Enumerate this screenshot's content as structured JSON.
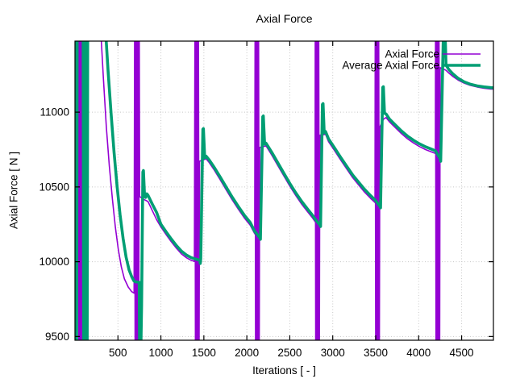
{
  "figure": {
    "title": "Axial Force",
    "x_label": "Iterations [ - ]",
    "y_label": "Axial Force [ N ]"
  },
  "chart_data": {
    "type": "line",
    "title": "Axial Force",
    "xlabel": "Iterations [ - ]",
    "ylabel": "Axial Force [ N ]",
    "xlim": [
      0,
      4870
    ],
    "ylim": [
      9475,
      11475
    ],
    "xticks": [
      500,
      1000,
      1500,
      2000,
      2500,
      3000,
      3500,
      4000,
      4500
    ],
    "yticks": [
      9500,
      10000,
      10500,
      11000
    ],
    "grid": "dotted",
    "grid_color": "#c8c8c8",
    "frame_color": "#000000",
    "legend_position": "top-right-inside",
    "legend": [
      "Axial Force",
      "Average Axial Force"
    ],
    "series": [
      {
        "name": "Axial Force",
        "color": "#9400D3",
        "line_width": 1.6,
        "segments": [
          [
            [
              40,
              11600
            ],
            [
              45,
              9350
            ],
            [
              52,
              11600
            ],
            [
              59,
              9350
            ],
            [
              66,
              11600
            ],
            [
              73,
              9350
            ],
            [
              80,
              11600
            ],
            [
              84,
              9350
            ]
          ],
          [
            [
              295,
              11600
            ],
            [
              330,
              11230
            ],
            [
              365,
              10900
            ],
            [
              400,
              10640
            ],
            [
              435,
              10420
            ],
            [
              470,
              10230
            ],
            [
              505,
              10080
            ],
            [
              540,
              9965
            ],
            [
              575,
              9885
            ],
            [
              620,
              9830
            ],
            [
              660,
              9800
            ],
            [
              688,
              9790
            ],
            [
              694,
              11600
            ],
            [
              700,
              9350
            ],
            [
              707,
              11600
            ],
            [
              714,
              9350
            ],
            [
              721,
              11600
            ],
            [
              728,
              9350
            ],
            [
              735,
              11600
            ],
            [
              742,
              9350
            ],
            [
              748,
              11600
            ],
            [
              753,
              10437
            ],
            [
              790,
              10420
            ],
            [
              850,
              10402
            ],
            [
              900,
              10342
            ],
            [
              950,
              10282
            ],
            [
              1000,
              10232
            ],
            [
              1060,
              10182
            ],
            [
              1120,
              10134
            ],
            [
              1180,
              10090
            ],
            [
              1240,
              10052
            ],
            [
              1300,
              10026
            ],
            [
              1350,
              10010
            ],
            [
              1390,
              10002
            ],
            [
              1396,
              11600
            ],
            [
              1402,
              9350
            ],
            [
              1409,
              11600
            ],
            [
              1416,
              9350
            ],
            [
              1423,
              11600
            ],
            [
              1430,
              9350
            ],
            [
              1437,
              11600
            ],
            [
              1444,
              9350
            ],
            [
              1450,
              10672
            ],
            [
              1526,
              10688
            ],
            [
              1560,
              10664
            ],
            [
              1620,
              10614
            ],
            [
              1690,
              10548
            ],
            [
              1760,
              10480
            ],
            [
              1830,
              10414
            ],
            [
              1900,
              10352
            ],
            [
              1970,
              10294
            ],
            [
              2040,
              10244
            ],
            [
              2092,
              10187
            ],
            [
              2096,
              11600
            ],
            [
              2102,
              9350
            ],
            [
              2109,
              11600
            ],
            [
              2116,
              9350
            ],
            [
              2123,
              11600
            ],
            [
              2130,
              9350
            ],
            [
              2137,
              11600
            ],
            [
              2144,
              9350
            ],
            [
              2150,
              10764
            ],
            [
              2224,
              10774
            ],
            [
              2290,
              10714
            ],
            [
              2360,
              10644
            ],
            [
              2430,
              10574
            ],
            [
              2500,
              10506
            ],
            [
              2570,
              10442
            ],
            [
              2640,
              10384
            ],
            [
              2710,
              10332
            ],
            [
              2765,
              10292
            ],
            [
              2794,
              10268
            ],
            [
              2796,
              11600
            ],
            [
              2802,
              9350
            ],
            [
              2809,
              11600
            ],
            [
              2816,
              9350
            ],
            [
              2823,
              11600
            ],
            [
              2830,
              9350
            ],
            [
              2837,
              11600
            ],
            [
              2844,
              9350
            ],
            [
              2850,
              10846
            ],
            [
              2916,
              10852
            ],
            [
              2950,
              10804
            ],
            [
              3020,
              10744
            ],
            [
              3090,
              10682
            ],
            [
              3160,
              10622
            ],
            [
              3230,
              10564
            ],
            [
              3300,
              10514
            ],
            [
              3370,
              10466
            ],
            [
              3440,
              10424
            ],
            [
              3492,
              10396
            ],
            [
              3494,
              11600
            ],
            [
              3500,
              9350
            ],
            [
              3507,
              11600
            ],
            [
              3514,
              9350
            ],
            [
              3521,
              11600
            ],
            [
              3528,
              9350
            ],
            [
              3535,
              11600
            ],
            [
              3542,
              9350
            ],
            [
              3548,
              10900
            ],
            [
              3589,
              10952
            ],
            [
              3620,
              10964
            ],
            [
              3660,
              10936
            ],
            [
              3730,
              10896
            ],
            [
              3800,
              10856
            ],
            [
              3870,
              10822
            ],
            [
              3940,
              10794
            ],
            [
              4010,
              10770
            ],
            [
              4080,
              10750
            ],
            [
              4150,
              10734
            ],
            [
              4194,
              10724
            ],
            [
              4196,
              11600
            ],
            [
              4202,
              9350
            ],
            [
              4209,
              11600
            ],
            [
              4216,
              9350
            ],
            [
              4223,
              11600
            ],
            [
              4230,
              9350
            ],
            [
              4237,
              11600
            ],
            [
              4244,
              9350
            ],
            [
              4250,
              11298
            ],
            [
              4318,
              11280
            ],
            [
              4350,
              11262
            ],
            [
              4400,
              11238
            ],
            [
              4460,
              11214
            ],
            [
              4530,
              11194
            ],
            [
              4600,
              11179
            ],
            [
              4680,
              11168
            ],
            [
              4760,
              11160
            ],
            [
              4840,
              11155
            ],
            [
              4865,
              11154
            ]
          ]
        ]
      },
      {
        "name": "Average Axial Force",
        "color": "#009E73",
        "line_width": 3.6,
        "segments": [
          [
            [
              2,
              11600
            ],
            [
              7,
              9350
            ],
            [
              13,
              11600
            ],
            [
              19,
              9350
            ],
            [
              25,
              11600
            ]
          ],
          [
            [
              95,
              11600
            ],
            [
              101,
              9350
            ],
            [
              108,
              11600
            ],
            [
              115,
              9350
            ],
            [
              122,
              11600
            ],
            [
              129,
              9350
            ],
            [
              136,
              11600
            ],
            [
              142,
              9350
            ],
            [
              148,
              11600
            ]
          ],
          [
            [
              350,
              11600
            ],
            [
              385,
              11280
            ],
            [
              420,
              10990
            ],
            [
              455,
              10730
            ],
            [
              490,
              10505
            ],
            [
              525,
              10315
            ],
            [
              560,
              10155
            ],
            [
              595,
              10030
            ],
            [
              630,
              9945
            ],
            [
              662,
              9898
            ],
            [
              686,
              9872
            ],
            [
              700,
              9866
            ],
            [
              748,
              9862
            ],
            [
              753,
              9350
            ],
            [
              765,
              9350
            ],
            [
              775,
              9700
            ],
            [
              790,
              10600
            ],
            [
              797,
              10610
            ],
            [
              810,
              10437
            ],
            [
              822,
              10430
            ],
            [
              836,
              10454
            ],
            [
              850,
              10444
            ],
            [
              900,
              10385
            ],
            [
              950,
              10330
            ],
            [
              1000,
              10250
            ],
            [
              1060,
              10200
            ],
            [
              1120,
              10152
            ],
            [
              1180,
              10108
            ],
            [
              1240,
              10070
            ],
            [
              1300,
              10044
            ],
            [
              1350,
              10028
            ],
            [
              1392,
              10020
            ],
            [
              1452,
              10010
            ],
            [
              1458,
              9988
            ],
            [
              1464,
              10020
            ],
            [
              1488,
              10885
            ],
            [
              1495,
              10890
            ],
            [
              1510,
              10694
            ],
            [
              1526,
              10706
            ],
            [
              1560,
              10682
            ],
            [
              1620,
              10632
            ],
            [
              1690,
              10566
            ],
            [
              1760,
              10498
            ],
            [
              1830,
              10432
            ],
            [
              1900,
              10370
            ],
            [
              1970,
              10312
            ],
            [
              2040,
              10262
            ],
            [
              2090,
              10205
            ],
            [
              2152,
              10160
            ],
            [
              2158,
              10150
            ],
            [
              2185,
              10970
            ],
            [
              2192,
              10975
            ],
            [
              2207,
              10786
            ],
            [
              2224,
              10792
            ],
            [
              2290,
              10732
            ],
            [
              2360,
              10662
            ],
            [
              2430,
              10592
            ],
            [
              2500,
              10524
            ],
            [
              2570,
              10460
            ],
            [
              2640,
              10402
            ],
            [
              2710,
              10350
            ],
            [
              2765,
              10310
            ],
            [
              2794,
              10286
            ],
            [
              2852,
              10245
            ],
            [
              2858,
              10235
            ],
            [
              2880,
              11052
            ],
            [
              2887,
              11057
            ],
            [
              2900,
              10862
            ],
            [
              2916,
              10870
            ],
            [
              2950,
              10822
            ],
            [
              3020,
              10762
            ],
            [
              3090,
              10700
            ],
            [
              3160,
              10640
            ],
            [
              3230,
              10582
            ],
            [
              3300,
              10532
            ],
            [
              3370,
              10484
            ],
            [
              3440,
              10442
            ],
            [
              3492,
              10414
            ],
            [
              3550,
              10370
            ],
            [
              3556,
              10360
            ],
            [
              3582,
              11165
            ],
            [
              3589,
              11170
            ],
            [
              3602,
              10992
            ],
            [
              3620,
              10988
            ],
            [
              3660,
              10954
            ],
            [
              3730,
              10914
            ],
            [
              3800,
              10874
            ],
            [
              3870,
              10840
            ],
            [
              3940,
              10812
            ],
            [
              4010,
              10788
            ],
            [
              4080,
              10768
            ],
            [
              4150,
              10752
            ],
            [
              4194,
              10742
            ],
            [
              4250,
              10690
            ],
            [
              4256,
              10672
            ],
            [
              4290,
              11600
            ],
            [
              4304,
              11600
            ],
            [
              4318,
              11315
            ],
            [
              4350,
              11286
            ],
            [
              4400,
              11255
            ],
            [
              4460,
              11226
            ],
            [
              4530,
              11203
            ],
            [
              4600,
              11187
            ],
            [
              4680,
              11176
            ],
            [
              4760,
              11169
            ],
            [
              4840,
              11164
            ],
            [
              4865,
              11163
            ]
          ]
        ]
      }
    ]
  }
}
